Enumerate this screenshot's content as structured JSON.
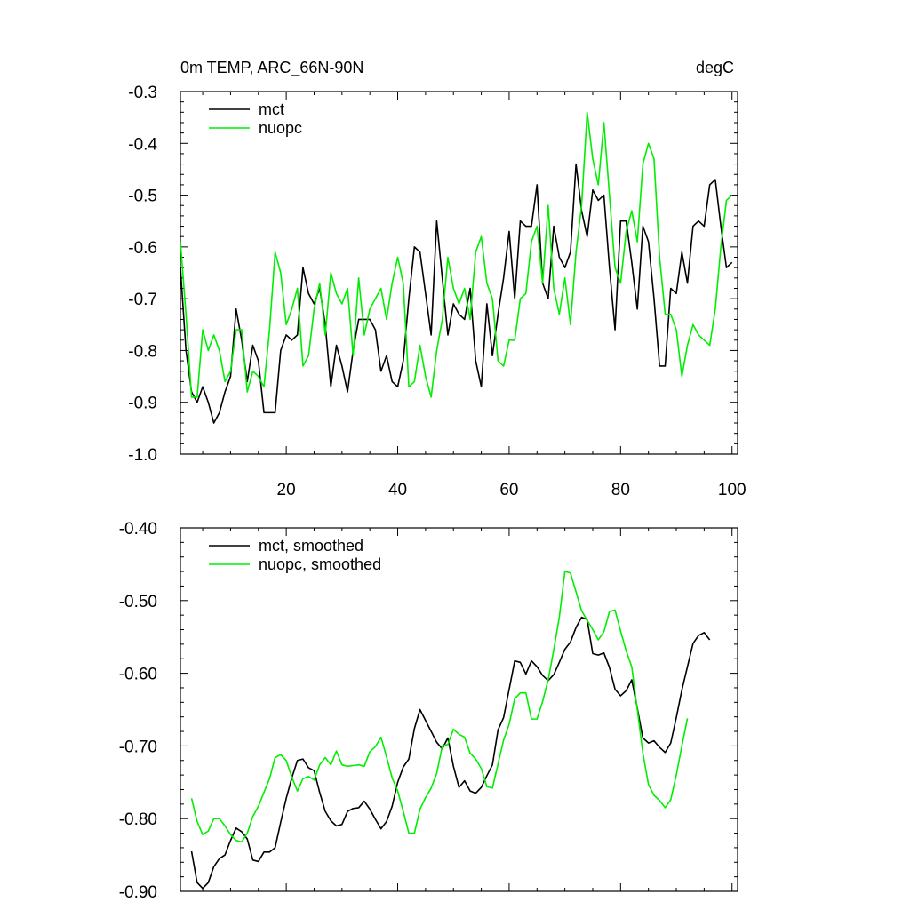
{
  "chart_data": [
    {
      "type": "line",
      "title_left": "0m TEMP, ARC_66N-90N",
      "title_right": "degC",
      "xlim": [
        1,
        101
      ],
      "ylim": [
        -1.0,
        -0.3
      ],
      "xticks": [
        20,
        40,
        60,
        80,
        100
      ],
      "xtick_labels": [
        "20",
        "40",
        "60",
        "80",
        "100"
      ],
      "yticks": [
        -1.0,
        -0.9,
        -0.8,
        -0.7,
        -0.6,
        -0.5,
        -0.4,
        -0.3
      ],
      "ytick_labels": [
        "-1.0",
        "-0.9",
        "-0.8",
        "-0.7",
        "-0.6",
        "-0.5",
        "-0.4",
        "-0.3"
      ],
      "legend_position": "top-left",
      "series": [
        {
          "name": "mct",
          "color": "#000000",
          "x_start": 1,
          "values": [
            -0.64,
            -0.8,
            -0.88,
            -0.9,
            -0.87,
            -0.9,
            -0.94,
            -0.92,
            -0.88,
            -0.85,
            -0.72,
            -0.78,
            -0.86,
            -0.79,
            -0.82,
            -0.92,
            -0.92,
            -0.92,
            -0.8,
            -0.77,
            -0.78,
            -0.77,
            -0.64,
            -0.69,
            -0.71,
            -0.68,
            -0.75,
            -0.87,
            -0.79,
            -0.83,
            -0.88,
            -0.8,
            -0.74,
            -0.74,
            -0.74,
            -0.76,
            -0.84,
            -0.81,
            -0.86,
            -0.87,
            -0.82,
            -0.7,
            -0.6,
            -0.61,
            -0.69,
            -0.77,
            -0.55,
            -0.66,
            -0.77,
            -0.71,
            -0.73,
            -0.74,
            -0.68,
            -0.82,
            -0.87,
            -0.71,
            -0.81,
            -0.73,
            -0.66,
            -0.57,
            -0.7,
            -0.55,
            -0.56,
            -0.56,
            -0.48,
            -0.67,
            -0.7,
            -0.56,
            -0.62,
            -0.64,
            -0.61,
            -0.44,
            -0.53,
            -0.58,
            -0.49,
            -0.51,
            -0.5,
            -0.64,
            -0.76,
            -0.55,
            -0.55,
            -0.63,
            -0.72,
            -0.56,
            -0.59,
            -0.7,
            -0.83,
            -0.83,
            -0.68,
            -0.69,
            -0.61,
            -0.67,
            -0.56,
            -0.55,
            -0.56,
            -0.48,
            -0.47,
            -0.56,
            -0.64,
            -0.63
          ]
        },
        {
          "name": "nuopc",
          "color": "#00ee00",
          "x_start": 1,
          "values": [
            -0.59,
            -0.73,
            -0.89,
            -0.89,
            -0.76,
            -0.8,
            -0.77,
            -0.8,
            -0.86,
            -0.84,
            -0.76,
            -0.76,
            -0.88,
            -0.84,
            -0.85,
            -0.87,
            -0.76,
            -0.61,
            -0.65,
            -0.75,
            -0.72,
            -0.68,
            -0.83,
            -0.81,
            -0.72,
            -0.67,
            -0.77,
            -0.65,
            -0.69,
            -0.71,
            -0.68,
            -0.81,
            -0.66,
            -0.77,
            -0.72,
            -0.7,
            -0.68,
            -0.74,
            -0.67,
            -0.62,
            -0.67,
            -0.87,
            -0.86,
            -0.79,
            -0.85,
            -0.89,
            -0.8,
            -0.74,
            -0.62,
            -0.68,
            -0.71,
            -0.68,
            -0.74,
            -0.61,
            -0.58,
            -0.67,
            -0.7,
            -0.82,
            -0.83,
            -0.78,
            -0.78,
            -0.7,
            -0.69,
            -0.59,
            -0.56,
            -0.67,
            -0.52,
            -0.68,
            -0.73,
            -0.66,
            -0.75,
            -0.61,
            -0.52,
            -0.34,
            -0.43,
            -0.48,
            -0.36,
            -0.5,
            -0.64,
            -0.67,
            -0.57,
            -0.53,
            -0.59,
            -0.44,
            -0.4,
            -0.43,
            -0.62,
            -0.73,
            -0.73,
            -0.76,
            -0.85,
            -0.79,
            -0.75,
            -0.77,
            -0.78,
            -0.79,
            -0.72,
            -0.6,
            -0.51,
            -0.5
          ]
        }
      ]
    },
    {
      "type": "line",
      "xlim": [
        1,
        101
      ],
      "ylim": [
        -0.9,
        -0.4
      ],
      "xticks": [
        20,
        40,
        60,
        80,
        100
      ],
      "yticks": [
        -0.9,
        -0.8,
        -0.7,
        -0.6,
        -0.5,
        -0.4
      ],
      "ytick_labels": [
        "-0.90",
        "-0.80",
        "-0.70",
        "-0.60",
        "-0.50",
        "-0.40"
      ],
      "legend_position": "top-left",
      "series": [
        {
          "name": "mct, smoothed",
          "color": "#000000",
          "x_start": 3,
          "values": [
            -0.845,
            -0.888,
            -0.896,
            -0.888,
            -0.866,
            -0.855,
            -0.85,
            -0.83,
            -0.813,
            -0.818,
            -0.828,
            -0.857,
            -0.859,
            -0.846,
            -0.846,
            -0.84,
            -0.805,
            -0.772,
            -0.744,
            -0.72,
            -0.718,
            -0.73,
            -0.734,
            -0.764,
            -0.79,
            -0.803,
            -0.81,
            -0.808,
            -0.79,
            -0.786,
            -0.785,
            -0.776,
            -0.787,
            -0.801,
            -0.814,
            -0.804,
            -0.783,
            -0.75,
            -0.729,
            -0.718,
            -0.676,
            -0.65,
            -0.665,
            -0.68,
            -0.695,
            -0.704,
            -0.689,
            -0.728,
            -0.757,
            -0.748,
            -0.762,
            -0.765,
            -0.757,
            -0.741,
            -0.726,
            -0.678,
            -0.661,
            -0.622,
            -0.583,
            -0.585,
            -0.601,
            -0.583,
            -0.591,
            -0.603,
            -0.61,
            -0.602,
            -0.585,
            -0.567,
            -0.557,
            -0.537,
            -0.523,
            -0.526,
            -0.573,
            -0.575,
            -0.572,
            -0.592,
            -0.622,
            -0.631,
            -0.624,
            -0.609,
            -0.648,
            -0.689,
            -0.696,
            -0.693,
            -0.702,
            -0.709,
            -0.696,
            -0.661,
            -0.623,
            -0.591,
            -0.559,
            -0.548,
            -0.544,
            -0.554
          ]
        },
        {
          "name": "nuopc, smoothed",
          "color": "#00ee00",
          "x_start": 3,
          "values": [
            -0.772,
            -0.804,
            -0.822,
            -0.817,
            -0.8,
            -0.8,
            -0.81,
            -0.822,
            -0.83,
            -0.832,
            -0.82,
            -0.797,
            -0.783,
            -0.764,
            -0.745,
            -0.716,
            -0.712,
            -0.72,
            -0.743,
            -0.762,
            -0.745,
            -0.742,
            -0.747,
            -0.726,
            -0.716,
            -0.726,
            -0.707,
            -0.726,
            -0.728,
            -0.727,
            -0.726,
            -0.728,
            -0.708,
            -0.701,
            -0.688,
            -0.715,
            -0.744,
            -0.762,
            -0.79,
            -0.82,
            -0.82,
            -0.787,
            -0.771,
            -0.758,
            -0.738,
            -0.7,
            -0.698,
            -0.677,
            -0.684,
            -0.688,
            -0.71,
            -0.718,
            -0.731,
            -0.756,
            -0.758,
            -0.725,
            -0.692,
            -0.67,
            -0.635,
            -0.627,
            -0.627,
            -0.663,
            -0.663,
            -0.639,
            -0.609,
            -0.568,
            -0.523,
            -0.46,
            -0.462,
            -0.488,
            -0.514,
            -0.527,
            -0.54,
            -0.554,
            -0.543,
            -0.515,
            -0.513,
            -0.542,
            -0.569,
            -0.591,
            -0.65,
            -0.71,
            -0.753,
            -0.768,
            -0.775,
            -0.785,
            -0.774,
            -0.74,
            -0.7,
            -0.662
          ]
        }
      ]
    }
  ]
}
